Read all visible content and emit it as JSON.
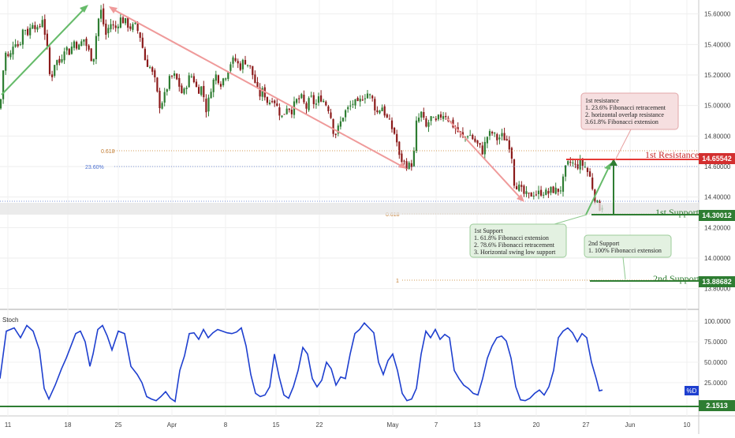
{
  "chart_data": [
    {
      "type": "candlestick",
      "ylim": [
        13.7,
        15.65
      ],
      "x_tick_labels": [
        "11",
        "18",
        "25",
        "Apr",
        "8",
        "15",
        "22",
        "May",
        "7",
        "13",
        "20",
        "27",
        "Jun",
        "10"
      ],
      "y_tick_labels": [
        "15.60000",
        "15.40000",
        "15.20000",
        "15.00000",
        "14.80000",
        "14.60000",
        "14.40000",
        "14.20000",
        "14.00000",
        "13.80000"
      ],
      "y_ticks": [
        15.6,
        15.4,
        15.2,
        15.0,
        14.8,
        14.6,
        14.4,
        14.2,
        14.0,
        13.8
      ],
      "price_path": [
        [
          0,
          14.98
        ],
        [
          6,
          15.35
        ],
        [
          12,
          15.3
        ],
        [
          18,
          15.44
        ],
        [
          24,
          15.38
        ],
        [
          30,
          15.52
        ],
        [
          36,
          15.47
        ],
        [
          42,
          15.56
        ],
        [
          48,
          15.48
        ],
        [
          54,
          15.58
        ],
        [
          60,
          15.36
        ],
        [
          64,
          15.15
        ],
        [
          70,
          15.3
        ],
        [
          76,
          15.28
        ],
        [
          82,
          15.39
        ],
        [
          88,
          15.35
        ],
        [
          94,
          15.42
        ],
        [
          100,
          15.38
        ],
        [
          106,
          15.44
        ],
        [
          112,
          15.36
        ],
        [
          118,
          15.29
        ],
        [
          124,
          15.55
        ],
        [
          128,
          15.62
        ],
        [
          134,
          15.46
        ],
        [
          140,
          15.54
        ],
        [
          146,
          15.5
        ],
        [
          152,
          15.57
        ],
        [
          158,
          15.55
        ],
        [
          166,
          15.51
        ],
        [
          172,
          15.52
        ],
        [
          178,
          15.45
        ],
        [
          184,
          15.3
        ],
        [
          190,
          15.25
        ],
        [
          196,
          15.17
        ],
        [
          202,
          15.0
        ],
        [
          208,
          15.05
        ],
        [
          214,
          15.16
        ],
        [
          220,
          15.2
        ],
        [
          226,
          15.15
        ],
        [
          232,
          15.06
        ],
        [
          238,
          15.17
        ],
        [
          244,
          15.2
        ],
        [
          250,
          15.1
        ],
        [
          256,
          15.12
        ],
        [
          262,
          14.96
        ],
        [
          268,
          15.13
        ],
        [
          274,
          15.2
        ],
        [
          280,
          15.15
        ],
        [
          286,
          15.2
        ],
        [
          292,
          15.28
        ],
        [
          298,
          15.3
        ],
        [
          304,
          15.25
        ],
        [
          310,
          15.3
        ],
        [
          316,
          15.26
        ],
        [
          322,
          15.18
        ],
        [
          328,
          15.06
        ],
        [
          334,
          15.1
        ],
        [
          340,
          15.01
        ],
        [
          346,
          15.06
        ],
        [
          352,
          14.98
        ],
        [
          358,
          14.92
        ],
        [
          364,
          15.0
        ],
        [
          370,
          14.97
        ],
        [
          376,
          15.03
        ],
        [
          382,
          15.05
        ],
        [
          388,
          14.98
        ],
        [
          394,
          15.05
        ],
        [
          400,
          15.0
        ],
        [
          406,
          15.06
        ],
        [
          412,
          15.02
        ],
        [
          418,
          14.97
        ],
        [
          424,
          14.8
        ],
        [
          430,
          14.86
        ],
        [
          436,
          14.95
        ],
        [
          442,
          14.98
        ],
        [
          448,
          15.02
        ],
        [
          454,
          15.0
        ],
        [
          460,
          15.06
        ],
        [
          466,
          15.08
        ],
        [
          472,
          15.04
        ],
        [
          478,
          14.95
        ],
        [
          484,
          15.0
        ],
        [
          490,
          14.92
        ],
        [
          496,
          14.86
        ],
        [
          502,
          14.8
        ],
        [
          506,
          14.66
        ],
        [
          512,
          14.63
        ],
        [
          518,
          14.6
        ],
        [
          524,
          14.63
        ],
        [
          528,
          14.88
        ],
        [
          534,
          14.95
        ],
        [
          540,
          14.85
        ],
        [
          546,
          14.92
        ],
        [
          552,
          14.88
        ],
        [
          558,
          14.93
        ],
        [
          564,
          14.95
        ],
        [
          570,
          14.9
        ],
        [
          576,
          14.86
        ],
        [
          582,
          14.82
        ],
        [
          588,
          14.78
        ],
        [
          594,
          14.82
        ],
        [
          600,
          14.78
        ],
        [
          606,
          14.74
        ],
        [
          612,
          14.7
        ],
        [
          618,
          14.8
        ],
        [
          624,
          14.82
        ],
        [
          630,
          14.78
        ],
        [
          636,
          14.8
        ],
        [
          642,
          14.78
        ],
        [
          648,
          14.72
        ],
        [
          652,
          14.5
        ],
        [
          658,
          14.46
        ],
        [
          664,
          14.42
        ],
        [
          670,
          14.4
        ],
        [
          676,
          14.43
        ],
        [
          682,
          14.42
        ],
        [
          688,
          14.44
        ],
        [
          694,
          14.42
        ],
        [
          700,
          14.45
        ],
        [
          706,
          14.44
        ],
        [
          712,
          14.46
        ],
        [
          718,
          14.6
        ],
        [
          724,
          14.63
        ],
        [
          730,
          14.6
        ],
        [
          736,
          14.62
        ],
        [
          742,
          14.6
        ],
        [
          748,
          14.53
        ],
        [
          752,
          14.45
        ],
        [
          756,
          14.36
        ],
        [
          760,
          14.33
        ],
        [
          764,
          14.35
        ]
      ]
    },
    {
      "type": "line",
      "title": "Stoch",
      "ylim": [
        -5,
        105
      ],
      "y_tick_labels": [
        "100.0000",
        "75.0000",
        "50.0000",
        "25.0000"
      ],
      "y_ticks": [
        100,
        75,
        50,
        25
      ],
      "series": [
        {
          "points": [
            [
              0,
              30
            ],
            [
              8,
              88
            ],
            [
              18,
              92
            ],
            [
              26,
              80
            ],
            [
              34,
              95
            ],
            [
              42,
              88
            ],
            [
              50,
              65
            ],
            [
              56,
              18
            ],
            [
              62,
              5
            ],
            [
              70,
              22
            ],
            [
              78,
              42
            ],
            [
              84,
              55
            ],
            [
              90,
              70
            ],
            [
              96,
              85
            ],
            [
              102,
              88
            ],
            [
              108,
              75
            ],
            [
              114,
              45
            ],
            [
              118,
              60
            ],
            [
              124,
              90
            ],
            [
              130,
              95
            ],
            [
              136,
              82
            ],
            [
              142,
              65
            ],
            [
              150,
              88
            ],
            [
              158,
              85
            ],
            [
              166,
              45
            ],
            [
              174,
              35
            ],
            [
              180,
              25
            ],
            [
              186,
              8
            ],
            [
              192,
              5
            ],
            [
              198,
              3
            ],
            [
              204,
              8
            ],
            [
              210,
              14
            ],
            [
              216,
              6
            ],
            [
              222,
              2
            ],
            [
              228,
              40
            ],
            [
              234,
              58
            ],
            [
              240,
              85
            ],
            [
              246,
              86
            ],
            [
              252,
              78
            ],
            [
              258,
              90
            ],
            [
              264,
              80
            ],
            [
              270,
              86
            ],
            [
              276,
              90
            ],
            [
              282,
              88
            ],
            [
              288,
              86
            ],
            [
              294,
              85
            ],
            [
              300,
              87
            ],
            [
              306,
              92
            ],
            [
              312,
              70
            ],
            [
              318,
              35
            ],
            [
              324,
              12
            ],
            [
              330,
              8
            ],
            [
              336,
              10
            ],
            [
              342,
              20
            ],
            [
              348,
              60
            ],
            [
              354,
              32
            ],
            [
              360,
              10
            ],
            [
              366,
              6
            ],
            [
              372,
              20
            ],
            [
              378,
              40
            ],
            [
              384,
              68
            ],
            [
              390,
              60
            ],
            [
              396,
              30
            ],
            [
              402,
              20
            ],
            [
              408,
              28
            ],
            [
              414,
              50
            ],
            [
              420,
              42
            ],
            [
              426,
              22
            ],
            [
              432,
              32
            ],
            [
              438,
              30
            ],
            [
              444,
              60
            ],
            [
              450,
              85
            ],
            [
              456,
              90
            ],
            [
              462,
              98
            ],
            [
              468,
              92
            ],
            [
              474,
              86
            ],
            [
              480,
              50
            ],
            [
              486,
              35
            ],
            [
              492,
              52
            ],
            [
              498,
              60
            ],
            [
              504,
              40
            ],
            [
              510,
              12
            ],
            [
              516,
              3
            ],
            [
              522,
              5
            ],
            [
              528,
              18
            ],
            [
              534,
              60
            ],
            [
              540,
              88
            ],
            [
              546,
              80
            ],
            [
              552,
              90
            ],
            [
              558,
              78
            ],
            [
              564,
              84
            ],
            [
              570,
              80
            ],
            [
              576,
              40
            ],
            [
              582,
              30
            ],
            [
              588,
              22
            ],
            [
              594,
              18
            ],
            [
              600,
              12
            ],
            [
              606,
              10
            ],
            [
              612,
              30
            ],
            [
              618,
              55
            ],
            [
              624,
              70
            ],
            [
              630,
              80
            ],
            [
              636,
              82
            ],
            [
              642,
              76
            ],
            [
              648,
              55
            ],
            [
              654,
              20
            ],
            [
              660,
              4
            ],
            [
              666,
              3
            ],
            [
              672,
              6
            ],
            [
              678,
              12
            ],
            [
              684,
              16
            ],
            [
              690,
              10
            ],
            [
              696,
              20
            ],
            [
              702,
              40
            ],
            [
              708,
              80
            ],
            [
              714,
              88
            ],
            [
              720,
              92
            ],
            [
              726,
              86
            ],
            [
              732,
              75
            ],
            [
              738,
              85
            ],
            [
              744,
              80
            ],
            [
              750,
              50
            ],
            [
              756,
              30
            ],
            [
              760,
              15
            ],
            [
              764,
              16
            ]
          ]
        }
      ]
    }
  ],
  "annotations": {
    "fib_0618_top": "0.618",
    "fib_2360": "23.60%",
    "fib_0618_low": "0.618",
    "fib_1": "1",
    "resistance_label": "1st Resistance",
    "resistance_price": "14.65542",
    "support1_label": "1st Support",
    "support1_price": "14.30012",
    "support2_label": "2nd Support",
    "support2_price": "13.88682",
    "stoch_level_price": "2.1513",
    "stoch_tag": "%D",
    "resistance_note": [
      "1st resistance",
      "1. 23.6% Fibonacci retracement",
      "2. horizontal overlap resistance",
      "3.61.8% Fibonacci extension"
    ],
    "support1_note": [
      "1st Support",
      "1. 61.8% Fibonacci extension",
      "2. 78.6% Fibonacci retracement",
      "3. Horizontal swing low support"
    ],
    "support2_note": [
      "2nd Support",
      "1. 100% Fibonacci extension"
    ]
  },
  "colors": {
    "up_candle": "#2e7d32",
    "down_candle": "#8b1a1a",
    "resistance": "#e53935",
    "support": "#2e7d32",
    "stoch_line": "#1e3fcf",
    "arrow_green": "#66bb6a",
    "arrow_red": "#ef9a9a"
  }
}
